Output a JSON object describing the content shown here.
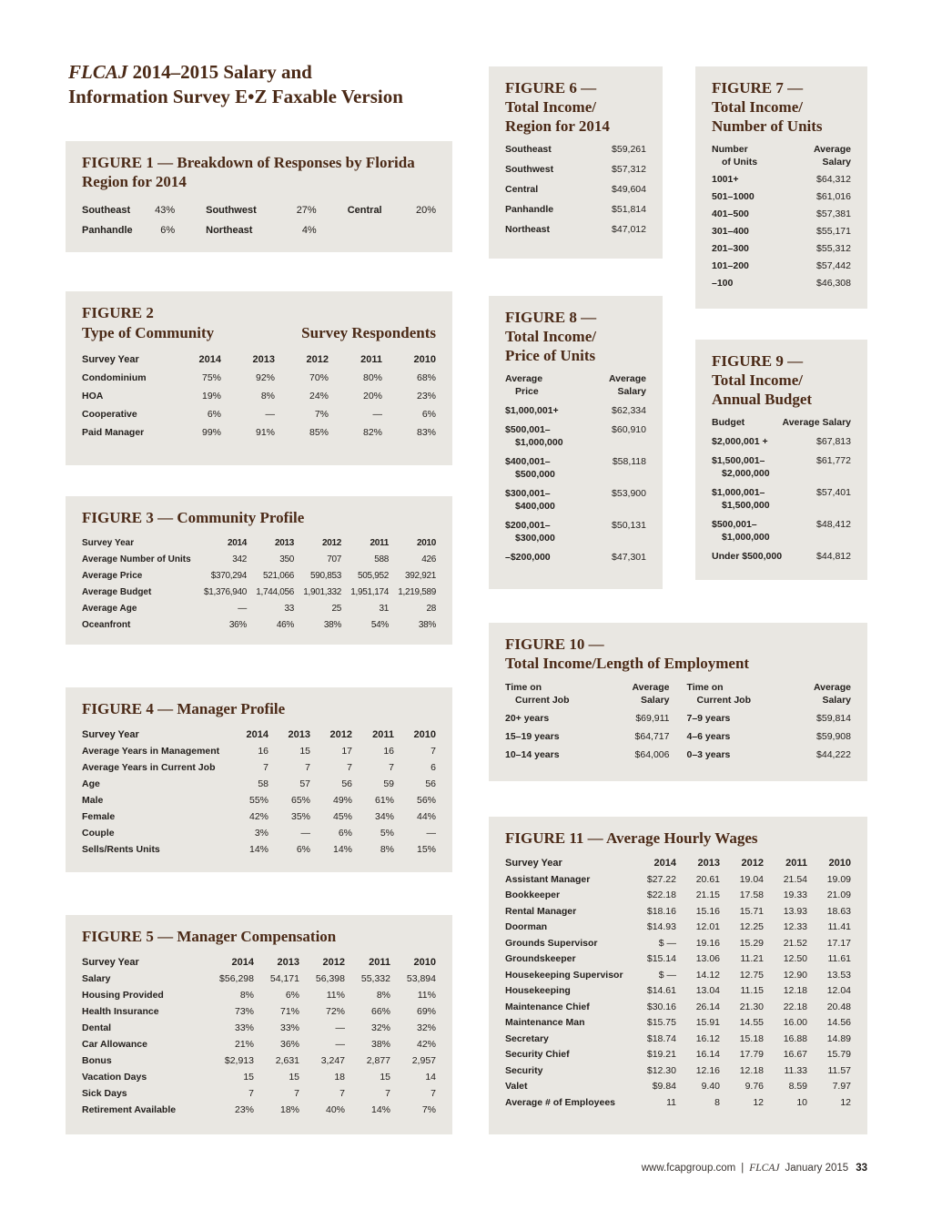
{
  "header": {
    "journal": "FLCAJ",
    "title_line1_rest": "2014–2015 Salary and",
    "title_line2": "Information Survey E•Z Faxable Version"
  },
  "fig1": {
    "heading": "FIGURE 1 — Breakdown of Responses by Florida Region for 2014",
    "entries": [
      {
        "label": "Southeast",
        "value": "43%"
      },
      {
        "label": "Southwest",
        "value": "27%"
      },
      {
        "label": "Central",
        "value": "20%"
      },
      {
        "label": "Panhandle",
        "value": "6%"
      },
      {
        "label": "Northeast",
        "value": "4%"
      }
    ]
  },
  "fig2": {
    "heading_figure": "FIGURE 2",
    "heading_sub": "Type of Community",
    "heading_right": "Survey Respondents",
    "header": {
      "label": "Survey Year",
      "years": [
        "2014",
        "2013",
        "2012",
        "2011",
        "2010"
      ]
    },
    "rows": [
      {
        "label": "Condominium",
        "values": [
          "75%",
          "92%",
          "70%",
          "80%",
          "68%"
        ]
      },
      {
        "label": "HOA",
        "values": [
          "19%",
          "8%",
          "24%",
          "20%",
          "23%"
        ]
      },
      {
        "label": "Cooperative",
        "values": [
          "6%",
          "—",
          "7%",
          "—",
          "6%"
        ]
      },
      {
        "label": "Paid Manager",
        "values": [
          "99%",
          "91%",
          "85%",
          "82%",
          "83%"
        ]
      }
    ]
  },
  "fig3": {
    "heading": "FIGURE 3 — Community Profile",
    "header": {
      "label": "Survey Year",
      "years": [
        "2014",
        "2013",
        "2012",
        "2011",
        "2010"
      ]
    },
    "rows": [
      {
        "label": "Average Number of Units",
        "values": [
          "342",
          "350",
          "707",
          "588",
          "426"
        ]
      },
      {
        "label": "Average Price",
        "values": [
          "$370,294",
          "521,066",
          "590,853",
          "505,952",
          "392,921"
        ]
      },
      {
        "label": "Average Budget",
        "values": [
          "$1,376,940",
          "1,744,056",
          "1,901,332",
          "1,951,174",
          "1,219,589"
        ]
      },
      {
        "label": "Average Age",
        "values": [
          "—",
          "33",
          "25",
          "31",
          "28"
        ]
      },
      {
        "label": "Oceanfront",
        "values": [
          "36%",
          "46%",
          "38%",
          "54%",
          "38%"
        ]
      }
    ]
  },
  "fig4": {
    "heading": "FIGURE 4 — Manager Profile",
    "header": {
      "label": "Survey Year",
      "years": [
        "2014",
        "2013",
        "2012",
        "2011",
        "2010"
      ]
    },
    "rows": [
      {
        "label": "Average Years in Management",
        "values": [
          "16",
          "15",
          "17",
          "16",
          "7"
        ]
      },
      {
        "label": "Average Years in Current Job",
        "values": [
          "7",
          "7",
          "7",
          "7",
          "6"
        ]
      },
      {
        "label": "Age",
        "values": [
          "58",
          "57",
          "56",
          "59",
          "56"
        ]
      },
      {
        "label": "Male",
        "values": [
          "55%",
          "65%",
          "49%",
          "61%",
          "56%"
        ]
      },
      {
        "label": "Female",
        "values": [
          "42%",
          "35%",
          "45%",
          "34%",
          "44%"
        ]
      },
      {
        "label": "Couple",
        "values": [
          "3%",
          "—",
          "6%",
          "5%",
          "—"
        ]
      },
      {
        "label": "Sells/Rents Units",
        "values": [
          "14%",
          "6%",
          "14%",
          "8%",
          "15%"
        ]
      }
    ]
  },
  "fig5": {
    "heading": "FIGURE 5 — Manager Compensation",
    "header": {
      "label": "Survey Year",
      "years": [
        "2014",
        "2013",
        "2012",
        "2011",
        "2010"
      ]
    },
    "rows": [
      {
        "label": "Salary",
        "values": [
          "$56,298",
          "54,171",
          "56,398",
          "55,332",
          "53,894"
        ]
      },
      {
        "label": "Housing Provided",
        "values": [
          "8%",
          "6%",
          "11%",
          "8%",
          "11%"
        ]
      },
      {
        "label": "Health Insurance",
        "values": [
          "73%",
          "71%",
          "72%",
          "66%",
          "69%"
        ]
      },
      {
        "label": "Dental",
        "values": [
          "33%",
          "33%",
          "—",
          "32%",
          "32%"
        ]
      },
      {
        "label": "Car Allowance",
        "values": [
          "21%",
          "36%",
          "—",
          "38%",
          "42%"
        ]
      },
      {
        "label": "Bonus",
        "values": [
          "$2,913",
          "2,631",
          "3,247",
          "2,877",
          "2,957"
        ]
      },
      {
        "label": "Vacation Days",
        "values": [
          "15",
          "15",
          "18",
          "15",
          "14"
        ]
      },
      {
        "label": "Sick Days",
        "values": [
          "7",
          "7",
          "7",
          "7",
          "7"
        ]
      },
      {
        "label": "Retirement Available",
        "values": [
          "23%",
          "18%",
          "40%",
          "14%",
          "7%"
        ]
      }
    ]
  },
  "fig6": {
    "heading_figure": "FIGURE 6 —",
    "heading_line1": "Total Income/",
    "heading_line2": "Region for 2014",
    "rows": [
      {
        "label": "Southeast",
        "value": "$59,261"
      },
      {
        "label": "Southwest",
        "value": "$57,312"
      },
      {
        "label": "Central",
        "value": "$49,604"
      },
      {
        "label": "Panhandle",
        "value": "$51,814"
      },
      {
        "label": "Northeast",
        "value": "$47,012"
      }
    ]
  },
  "fig7": {
    "heading_figure": "FIGURE 7 —",
    "heading_line1": "Total Income/",
    "heading_line2": "Number of Units",
    "header": {
      "label": "Number\nof Units",
      "value": "Average\nSalary"
    },
    "rows": [
      {
        "label": "1001+",
        "value": "$64,312"
      },
      {
        "label": "501–1000",
        "value": "$61,016"
      },
      {
        "label": "401–500",
        "value": "$57,381"
      },
      {
        "label": "301–400",
        "value": "$55,171"
      },
      {
        "label": "201–300",
        "value": "$55,312"
      },
      {
        "label": "101–200",
        "value": "$57,442"
      },
      {
        "label": "–100",
        "value": "$46,308"
      }
    ]
  },
  "fig8": {
    "heading_figure": "FIGURE 8 —",
    "heading_line1": "Total Income/",
    "heading_line2": "Price of Units",
    "header": {
      "label": "Average\nPrice",
      "value": "Average\nSalary"
    },
    "rows": [
      {
        "label": "$1,000,001+",
        "value": "$62,334"
      },
      {
        "label": "$500,001–\n$1,000,000",
        "value": "$60,910"
      },
      {
        "label": "$400,001–\n$500,000",
        "value": "$58,118"
      },
      {
        "label": "$300,001–\n$400,000",
        "value": "$53,900"
      },
      {
        "label": "$200,001–\n$300,000",
        "value": "$50,131"
      },
      {
        "label": "–$200,000",
        "value": "$47,301"
      }
    ]
  },
  "fig9": {
    "heading_figure": "FIGURE 9 —",
    "heading_line1": "Total Income/",
    "heading_line2": "Annual Budget",
    "header": {
      "label": "Budget",
      "value": "Average Salary"
    },
    "rows": [
      {
        "label": "$2,000,001 +",
        "value": "$67,813"
      },
      {
        "label": "$1,500,001–\n$2,000,000",
        "value": "$61,772"
      },
      {
        "label": "$1,000,001–\n$1,500,000",
        "value": "$57,401"
      },
      {
        "label": "$500,001–\n$1,000,000",
        "value": "$48,412"
      },
      {
        "label": "Under $500,000",
        "value": "$44,812"
      }
    ]
  },
  "fig10": {
    "heading_figure": "FIGURE 10 —",
    "heading_line1": "Total Income/Length of Employment",
    "header": {
      "label": "Time on\nCurrent Job",
      "value": "Average\nSalary"
    },
    "left_rows": [
      {
        "label": "20+ years",
        "value": "$69,911"
      },
      {
        "label": "15–19 years",
        "value": "$64,717"
      },
      {
        "label": "10–14 years",
        "value": "$64,006"
      }
    ],
    "right_rows": [
      {
        "label": "7–9 years",
        "value": "$59,814"
      },
      {
        "label": "4–6 years",
        "value": "$59,908"
      },
      {
        "label": "0–3 years",
        "value": "$44,222"
      }
    ]
  },
  "fig11": {
    "heading": "FIGURE 11 — Average Hourly Wages",
    "header": {
      "label": "Survey Year",
      "years": [
        "2014",
        "2013",
        "2012",
        "2011",
        "2010"
      ]
    },
    "rows": [
      {
        "label": "Assistant Manager",
        "values": [
          "$27.22",
          "20.61",
          "19.04",
          "21.54",
          "19.09"
        ]
      },
      {
        "label": "Bookkeeper",
        "values": [
          "$22.18",
          "21.15",
          "17.58",
          "19.33",
          "21.09"
        ]
      },
      {
        "label": "Rental Manager",
        "values": [
          "$18.16",
          "15.16",
          "15.71",
          "13.93",
          "18.63"
        ]
      },
      {
        "label": "Doorman",
        "values": [
          "$14.93",
          "12.01",
          "12.25",
          "12.33",
          "11.41"
        ]
      },
      {
        "label": "Grounds Supervisor",
        "values": [
          "$ —",
          "19.16",
          "15.29",
          "21.52",
          "17.17"
        ]
      },
      {
        "label": "Groundskeeper",
        "values": [
          "$15.14",
          "13.06",
          "11.21",
          "12.50",
          "11.61"
        ]
      },
      {
        "label": "Housekeeping Supervisor",
        "values": [
          "$ —",
          "14.12",
          "12.75",
          "12.90",
          "13.53"
        ]
      },
      {
        "label": "Housekeeping",
        "values": [
          "$14.61",
          "13.04",
          "11.15",
          "12.18",
          "12.04"
        ]
      },
      {
        "label": "Maintenance Chief",
        "values": [
          "$30.16",
          "26.14",
          "21.30",
          "22.18",
          "20.48"
        ]
      },
      {
        "label": "Maintenance Man",
        "values": [
          "$15.75",
          "15.91",
          "14.55",
          "16.00",
          "14.56"
        ]
      },
      {
        "label": "Secretary",
        "values": [
          "$18.74",
          "16.12",
          "15.18",
          "16.88",
          "14.89"
        ]
      },
      {
        "label": "Security Chief",
        "values": [
          "$19.21",
          "16.14",
          "17.79",
          "16.67",
          "15.79"
        ]
      },
      {
        "label": "Security",
        "values": [
          "$12.30",
          "12.16",
          "12.18",
          "11.33",
          "11.57"
        ]
      },
      {
        "label": "Valet",
        "values": [
          "$9.84",
          "9.40",
          "9.76",
          "8.59",
          "7.97"
        ]
      },
      {
        "label": "Average # of Employees",
        "values": [
          "11",
          "8",
          "12",
          "10",
          "12"
        ]
      }
    ]
  },
  "footer": {
    "url": "www.fcapgroup.com",
    "separator": "|",
    "journal": "FLCAJ",
    "issue": "January 2015",
    "page_number": "33"
  }
}
